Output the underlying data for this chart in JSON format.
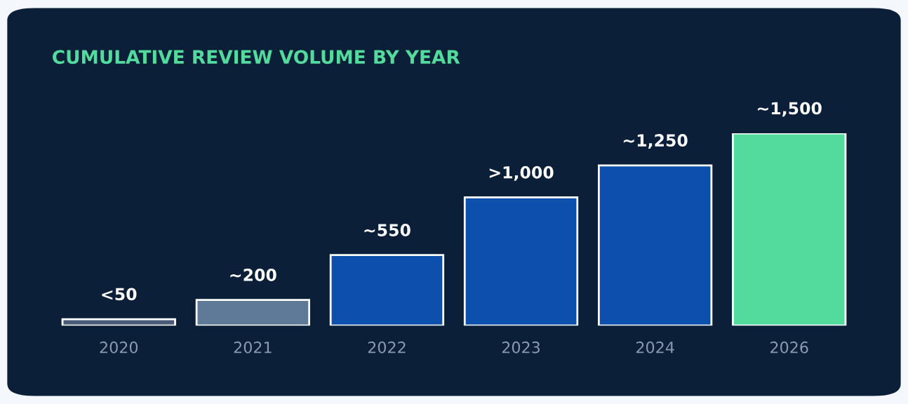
{
  "chart_data": {
    "type": "bar",
    "title": "CUMULATIVE REVIEW VOLUME BY YEAR",
    "categories": [
      "2020",
      "2021",
      "2022",
      "2023",
      "2024",
      "2026"
    ],
    "values": [
      50,
      200,
      550,
      1000,
      1250,
      1500
    ],
    "colors": [
      "#4a5b78",
      "#5f7999",
      "#0d4fad",
      "#0d4fad",
      "#0d4fad",
      "#52db9c"
    ],
    "value_labels": [
      "<50",
      "~200",
      "~550",
      ">1,000",
      "~1,250",
      "~1,500"
    ]
  }
}
